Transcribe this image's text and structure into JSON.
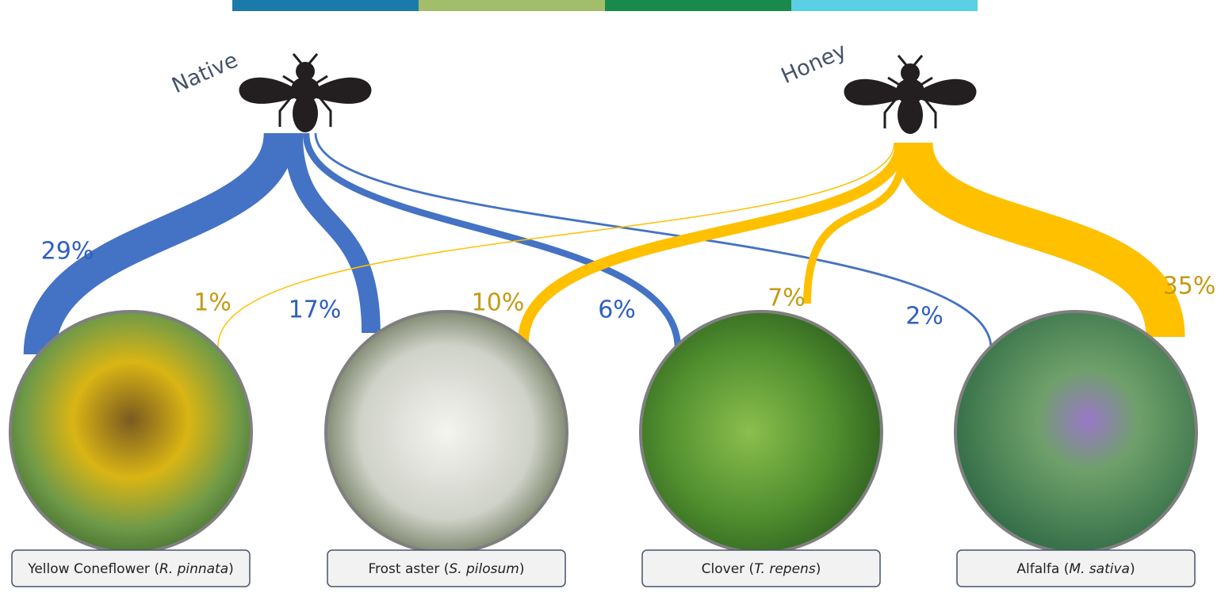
{
  "bees": [
    {
      "name": "Native",
      "color": "#4472c4",
      "label_color": "#2e5fc1",
      "flows": [
        {
          "value": 29,
          "label": "29%"
        },
        {
          "value": 17,
          "label": "17%"
        },
        {
          "value": 6,
          "label": "6%"
        },
        {
          "value": 2,
          "label": "2%"
        }
      ]
    },
    {
      "name": "Honey",
      "color": "#ffc000",
      "label_color": "#c59a12",
      "flows": [
        {
          "value": 1,
          "label": "1%"
        },
        {
          "value": 10,
          "label": "10%"
        },
        {
          "value": 7,
          "label": "7%"
        },
        {
          "value": 35,
          "label": "35%"
        }
      ]
    }
  ],
  "flowers": [
    {
      "label": [
        "Yellow Coneflower (",
        "R. pinnata",
        ")"
      ]
    },
    {
      "label": [
        "Frost aster  (",
        "S. pilosum",
        ")"
      ]
    },
    {
      "label": [
        "Clover (",
        "T. repens",
        ")"
      ]
    },
    {
      "label": [
        "Alfalfa (",
        "M. sativa",
        ")"
      ]
    }
  ]
}
